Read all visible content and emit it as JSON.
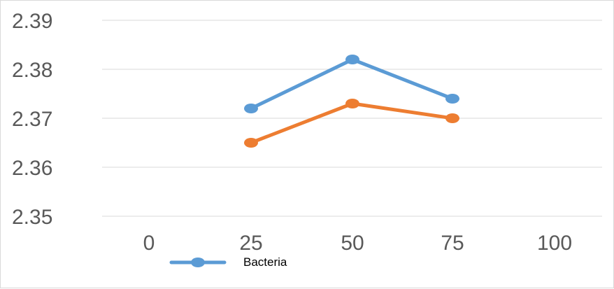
{
  "chart_data": {
    "type": "line",
    "x": [
      0,
      25,
      50,
      75,
      100
    ],
    "x_tick_labels": [
      "0",
      "25",
      "50",
      "75",
      "100"
    ],
    "y_tick_labels": [
      "2.39",
      "2.38",
      "2.37",
      "2.36",
      "2.35"
    ],
    "ylim": [
      2.35,
      2.39
    ],
    "xlim": [
      0,
      100
    ],
    "grid": true,
    "legend_position": "bottom-left",
    "series": [
      {
        "name": "Bacteria",
        "color": "#5B9BD5",
        "points": [
          {
            "x": 25,
            "y": 2.372
          },
          {
            "x": 50,
            "y": 2.382
          },
          {
            "x": 75,
            "y": 2.374
          }
        ]
      },
      {
        "color": "#ED7D31",
        "points": [
          {
            "x": 25,
            "y": 2.365
          },
          {
            "x": 50,
            "y": 2.373
          },
          {
            "x": 75,
            "y": 2.37
          }
        ]
      }
    ]
  }
}
